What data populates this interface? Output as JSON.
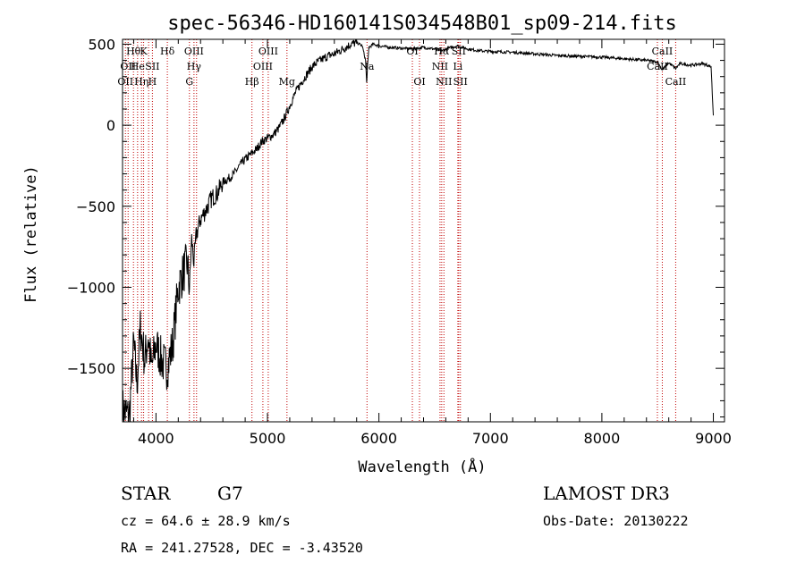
{
  "chart_data": {
    "type": "line",
    "title": "spec-56346-HD160141S034548B01_sp09-214.fits",
    "xlabel": "Wavelength (Å)",
    "ylabel": "Flux (relative)",
    "xlim": [
      3700,
      9100
    ],
    "ylim": [
      -1830,
      530
    ],
    "xticks": [
      4000,
      5000,
      6000,
      7000,
      8000,
      9000
    ],
    "yticks": [
      -1500,
      -1000,
      -500,
      0,
      500
    ],
    "xtick_labels": [
      "4000",
      "5000",
      "6000",
      "7000",
      "8000",
      "9000"
    ],
    "ytick_labels": [
      "−1500",
      "−1000",
      "−500",
      "0",
      "500"
    ],
    "grid": false,
    "series": [
      {
        "x": [
          3700,
          3760,
          3800,
          3830,
          3860,
          3900,
          3930,
          3960,
          4000,
          4050,
          4100,
          4150,
          4200,
          4250,
          4280,
          4300,
          4320,
          4340,
          4360,
          4400,
          4450,
          4500,
          4550,
          4600,
          4650,
          4700,
          4750,
          4800,
          4850,
          4900,
          4950,
          5000,
          5050,
          5100,
          5150,
          5200,
          5250,
          5300,
          5350,
          5400,
          5450,
          5500,
          5550,
          5600,
          5650,
          5700,
          5750,
          5800,
          5850,
          5880,
          5890,
          5896,
          5910,
          5950,
          6000,
          6050,
          6100,
          6200,
          6300,
          6400,
          6500,
          6563,
          6600,
          6700,
          6800,
          6900,
          7000,
          7200,
          7400,
          7600,
          7800,
          8000,
          8200,
          8400,
          8500,
          8542,
          8600,
          8662,
          8700,
          8800,
          8900,
          8950,
          8980,
          8990,
          9000
        ],
        "y": [
          -1750,
          -1800,
          -1350,
          -1600,
          -1250,
          -1450,
          -1300,
          -1500,
          -1350,
          -1450,
          -1500,
          -1350,
          -1000,
          -900,
          -850,
          -1000,
          -700,
          -850,
          -680,
          -580,
          -520,
          -450,
          -420,
          -350,
          -330,
          -300,
          -250,
          -210,
          -180,
          -150,
          -100,
          -80,
          -60,
          -20,
          40,
          120,
          200,
          260,
          310,
          360,
          390,
          410,
          430,
          440,
          460,
          480,
          500,
          510,
          490,
          400,
          260,
          340,
          480,
          500,
          490,
          485,
          480,
          475,
          470,
          480,
          470,
          460,
          470,
          490,
          470,
          460,
          455,
          450,
          440,
          430,
          425,
          420,
          410,
          400,
          390,
          340,
          385,
          350,
          380,
          370,
          380,
          370,
          360,
          200,
          60
        ]
      }
    ],
    "lines": [
      {
        "x": 3726,
        "labels": [
          {
            "row": 2,
            "text": "OII"
          }
        ]
      },
      {
        "x": 3750,
        "labels": [
          {
            "row": 1,
            "text": "OII"
          }
        ]
      },
      {
        "x": 3798,
        "labels": [
          {
            "row": 0,
            "text": "Hθ"
          }
        ]
      },
      {
        "x": 3835,
        "labels": [
          {
            "row": 1,
            "text": "He"
          }
        ]
      },
      {
        "x": 3870,
        "labels": [
          {
            "row": 2,
            "text": "Hη"
          }
        ]
      },
      {
        "x": 3889,
        "labels": [
          {
            "row": 0,
            "text": "K"
          }
        ]
      },
      {
        "x": 3934,
        "labels": []
      },
      {
        "x": 3968,
        "labels": [
          {
            "row": 1,
            "text": "SII"
          },
          {
            "row": 2,
            "text": "H"
          }
        ]
      },
      {
        "x": 4102,
        "labels": [
          {
            "row": 0,
            "text": "Hδ"
          }
        ]
      },
      {
        "x": 4300,
        "labels": [
          {
            "row": 2,
            "text": "G"
          }
        ]
      },
      {
        "x": 4341,
        "labels": [
          {
            "row": 0,
            "text": "OIII"
          },
          {
            "row": 1,
            "text": "Hγ"
          }
        ]
      },
      {
        "x": 4364,
        "labels": []
      },
      {
        "x": 4861,
        "labels": [
          {
            "row": 2,
            "text": "Hβ"
          }
        ]
      },
      {
        "x": 4959,
        "labels": [
          {
            "row": 1,
            "text": "OIII"
          }
        ]
      },
      {
        "x": 5007,
        "labels": [
          {
            "row": 0,
            "text": "OIII"
          }
        ]
      },
      {
        "x": 5175,
        "labels": [
          {
            "row": 2,
            "text": "Mg"
          }
        ]
      },
      {
        "x": 5893,
        "labels": [
          {
            "row": 1,
            "text": "Na"
          }
        ]
      },
      {
        "x": 6300,
        "labels": [
          {
            "row": 0,
            "text": "OI"
          }
        ]
      },
      {
        "x": 6364,
        "labels": [
          {
            "row": 2,
            "text": "OI"
          }
        ]
      },
      {
        "x": 6548,
        "labels": [
          {
            "row": 1,
            "text": "NII"
          }
        ]
      },
      {
        "x": 6563,
        "labels": [
          {
            "row": 0,
            "text": "Hα"
          }
        ]
      },
      {
        "x": 6583,
        "labels": [
          {
            "row": 2,
            "text": "NII"
          }
        ]
      },
      {
        "x": 6708,
        "labels": [
          {
            "row": 1,
            "text": "Li"
          }
        ]
      },
      {
        "x": 6716,
        "labels": [
          {
            "row": 0,
            "text": "SII"
          }
        ]
      },
      {
        "x": 6731,
        "labels": [
          {
            "row": 2,
            "text": "SII"
          }
        ]
      },
      {
        "x": 8498,
        "labels": [
          {
            "row": 1,
            "text": "CaII"
          }
        ]
      },
      {
        "x": 8542,
        "labels": [
          {
            "row": 0,
            "text": "CaII"
          }
        ]
      },
      {
        "x": 8662,
        "labels": [
          {
            "row": 2,
            "text": "CaII"
          }
        ]
      }
    ]
  },
  "info": {
    "object_type": "STAR",
    "subclass": "G7",
    "survey": "LAMOST DR3",
    "cz": "cz = 64.6 ± 28.9 km/s",
    "obs_date": "Obs-Date: 20130222",
    "coords": "RA = 241.27528, DEC =  -3.43520"
  },
  "colors": {
    "spectrum": "#000000",
    "line_marker": "#c00000",
    "axes": "#000000"
  }
}
